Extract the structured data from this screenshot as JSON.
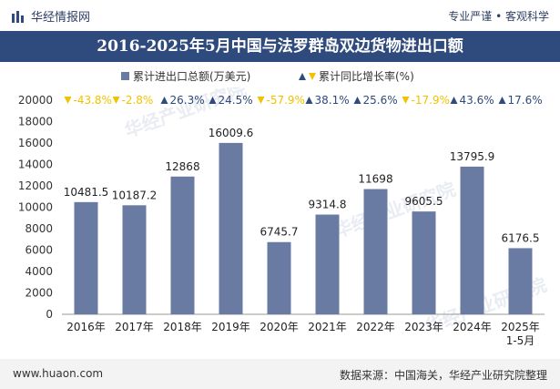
{
  "header": {
    "brand": "华经情报网",
    "slogan": "专业严谨 • 客观科学"
  },
  "title": "2016-2025年5月中国与法罗群岛双边货物进出口额",
  "legend": {
    "series1": "累计进出口总额(万美元)",
    "series2": "累计同比增长率(%)"
  },
  "chart_data": {
    "type": "bar",
    "categories": [
      "2016年",
      "2017年",
      "2018年",
      "2019年",
      "2020年",
      "2021年",
      "2022年",
      "2023年",
      "2024年",
      "2025年 1-5月"
    ],
    "series": [
      {
        "name": "累计进出口总额(万美元)",
        "values": [
          10481.5,
          10187.2,
          12868,
          16009.6,
          6745.7,
          9314.8,
          11698,
          9605.5,
          13795.9,
          6176.5
        ]
      },
      {
        "name": "累计同比增长率(%)",
        "values": [
          -43.8,
          -2.8,
          26.3,
          24.5,
          -57.9,
          38.1,
          25.6,
          -17.9,
          43.6,
          17.6
        ]
      }
    ],
    "growth_labels": [
      "-43.8%",
      "-2.8%",
      "26.3%",
      "24.5%",
      "-57.9%",
      "38.1%",
      "25.6%",
      "-17.9%",
      "43.6%",
      "17.6%"
    ],
    "value_labels": [
      "10481.5",
      "10187.2",
      "12868",
      "16009.6",
      "6745.7",
      "9314.8",
      "11698",
      "9605.5",
      "13795.9",
      "6176.5"
    ],
    "yticks": [
      0,
      2000,
      4000,
      6000,
      8000,
      10000,
      12000,
      14000,
      16000,
      18000,
      20000
    ],
    "ylim": [
      0,
      20000
    ],
    "colors": {
      "bar": "#6a7ba3",
      "up": "#2f4a7c",
      "down": "#f2c200"
    }
  },
  "watermark": "华经产业研究院",
  "footer": {
    "site": "www.huaon.com",
    "source": "数据来源：中国海关，华经产业研究院整理"
  }
}
